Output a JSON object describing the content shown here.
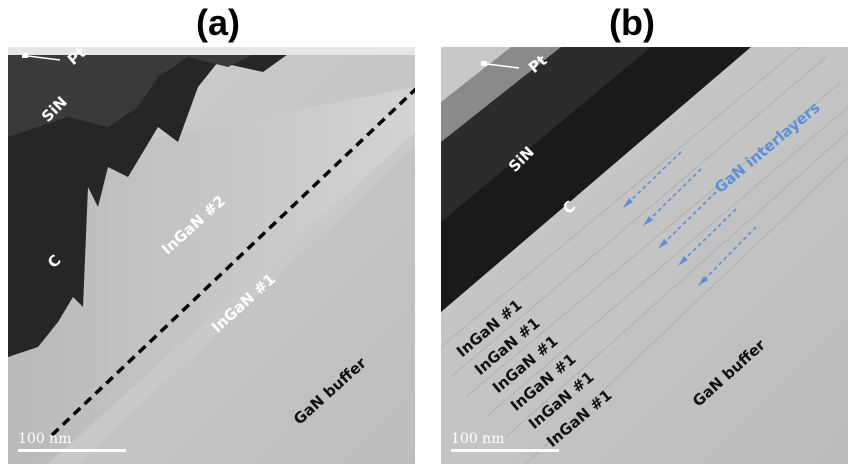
{
  "panel_a": {
    "title": "(a)",
    "labels": {
      "pt": "Pt",
      "sin": "SiN",
      "c": "C",
      "ingan2": "InGaN #2",
      "ingan1": "InGaN #1",
      "buffer": "GaN buffer"
    },
    "scale_bar": "100 nm"
  },
  "panel_b": {
    "title": "(b)",
    "labels": {
      "pt": "Pt",
      "sin": "SiN",
      "c": "C",
      "interlayers": "GaN interlayers",
      "ingan1_stack": [
        "InGaN #1",
        "InGaN #1",
        "InGaN #1",
        "InGaN #1",
        "InGaN #1",
        "InGaN #1"
      ],
      "buffer": "GaN buffer"
    },
    "scale_bar": "100 nm"
  },
  "colors": {
    "arrow_blue": "#5b8fd6",
    "buffer_gray": "#c4c4c4",
    "dark_layer": "#1a1a1a"
  }
}
